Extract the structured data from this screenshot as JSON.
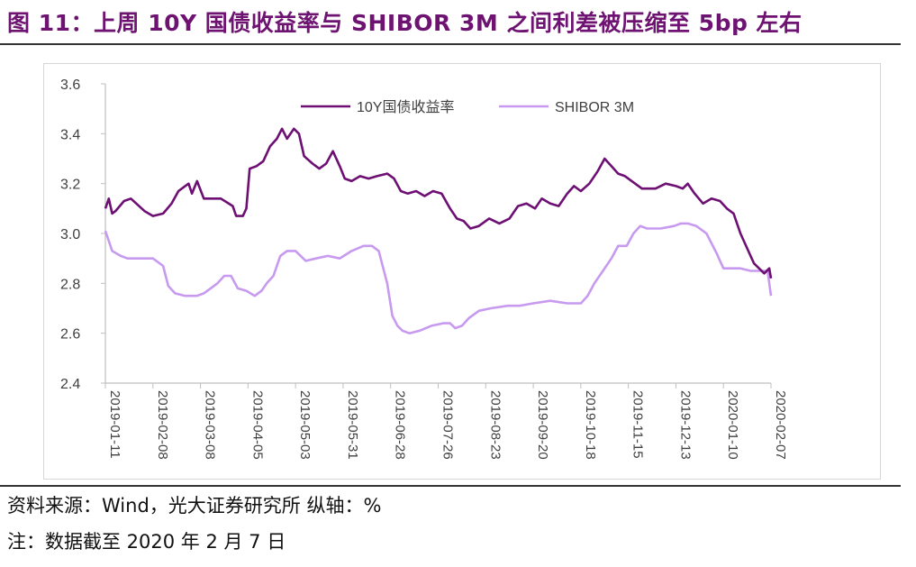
{
  "title": "图 11：上周 10Y 国债收益率与 SHIBOR 3M 之间利差被压缩至 5bp 左右",
  "source": "资料来源：Wind，光大证券研究所 纵轴：%",
  "footnote": "注：数据截至 2020 年 2 月 7 日",
  "colors": {
    "title": "#6e1371",
    "series_10y": "#6d0f73",
    "series_shibor": "#c79af0",
    "axis": "#bfbfbf",
    "text": "#404040"
  },
  "chart_data": {
    "type": "line",
    "title": "",
    "xlabel": "",
    "ylabel": "",
    "ylim": [
      2.4,
      3.6
    ],
    "yticks": [
      "3.6",
      "3.4",
      "3.2",
      "3.0",
      "2.8",
      "2.6",
      "2.4"
    ],
    "xlim": [
      "2019-01-11",
      "2020-02-07"
    ],
    "xticks": [
      "2019-01-11",
      "2019-02-08",
      "2019-03-08",
      "2019-04-05",
      "2019-05-03",
      "2019-05-31",
      "2019-06-28",
      "2019-07-26",
      "2019-08-23",
      "2019-09-20",
      "2019-10-18",
      "2019-11-15",
      "2019-12-13",
      "2020-01-10",
      "2020-02-07"
    ],
    "grid": false,
    "legend": "top-center",
    "series": [
      {
        "name": "10Y国债收益率",
        "x": [
          "2019-01-11",
          "2019-01-13",
          "2019-01-15",
          "2019-01-17",
          "2019-01-22",
          "2019-01-26",
          "2019-02-03",
          "2019-02-08",
          "2019-02-14",
          "2019-02-19",
          "2019-02-23",
          "2019-02-27",
          "2019-03-01",
          "2019-03-03",
          "2019-03-06",
          "2019-03-10",
          "2019-03-16",
          "2019-03-20",
          "2019-03-27",
          "2019-03-29",
          "2019-04-02",
          "2019-04-04",
          "2019-04-06",
          "2019-04-10",
          "2019-04-14",
          "2019-04-18",
          "2019-04-22",
          "2019-04-25",
          "2019-04-28",
          "2019-05-02",
          "2019-05-05",
          "2019-05-08",
          "2019-05-13",
          "2019-05-17",
          "2019-05-21",
          "2019-05-25",
          "2019-05-29",
          "2019-06-01",
          "2019-06-05",
          "2019-06-10",
          "2019-06-15",
          "2019-06-20",
          "2019-06-26",
          "2019-06-30",
          "2019-07-04",
          "2019-07-08",
          "2019-07-13",
          "2019-07-18",
          "2019-07-23",
          "2019-07-28",
          "2019-08-02",
          "2019-08-06",
          "2019-08-10",
          "2019-08-14",
          "2019-08-19",
          "2019-08-25",
          "2019-08-31",
          "2019-09-06",
          "2019-09-11",
          "2019-09-16",
          "2019-09-21",
          "2019-09-25",
          "2019-09-30",
          "2019-10-05",
          "2019-10-10",
          "2019-10-14",
          "2019-10-18",
          "2019-10-23",
          "2019-10-28",
          "2019-11-01",
          "2019-11-05",
          "2019-11-09",
          "2019-11-13",
          "2019-11-17",
          "2019-11-23",
          "2019-12-01",
          "2019-12-07",
          "2019-12-13",
          "2019-12-17",
          "2019-12-20",
          "2019-12-24",
          "2019-12-29",
          "2020-01-03",
          "2020-01-08",
          "2020-01-12",
          "2020-01-16",
          "2020-01-20",
          "2020-01-24",
          "2020-01-28",
          "2020-02-03",
          "2020-02-06",
          "2020-02-07"
        ],
        "values": [
          3.1,
          3.14,
          3.08,
          3.09,
          3.13,
          3.14,
          3.09,
          3.07,
          3.08,
          3.12,
          3.17,
          3.19,
          3.2,
          3.16,
          3.21,
          3.14,
          3.14,
          3.14,
          3.11,
          3.07,
          3.07,
          3.1,
          3.26,
          3.27,
          3.29,
          3.35,
          3.38,
          3.42,
          3.38,
          3.42,
          3.4,
          3.31,
          3.28,
          3.26,
          3.28,
          3.33,
          3.27,
          3.22,
          3.21,
          3.23,
          3.22,
          3.23,
          3.24,
          3.22,
          3.17,
          3.16,
          3.17,
          3.15,
          3.17,
          3.16,
          3.1,
          3.06,
          3.05,
          3.02,
          3.03,
          3.06,
          3.04,
          3.06,
          3.11,
          3.12,
          3.1,
          3.14,
          3.12,
          3.11,
          3.16,
          3.19,
          3.17,
          3.2,
          3.25,
          3.3,
          3.27,
          3.24,
          3.23,
          3.21,
          3.18,
          3.18,
          3.2,
          3.19,
          3.18,
          3.2,
          3.16,
          3.12,
          3.14,
          3.13,
          3.1,
          3.08,
          3.0,
          2.94,
          2.88,
          2.84,
          2.86,
          2.82
        ]
      },
      {
        "name": "SHIBOR 3M",
        "x": [
          "2019-01-11",
          "2019-01-13",
          "2019-01-15",
          "2019-01-20",
          "2019-01-24",
          "2019-01-31",
          "2019-02-08",
          "2019-02-14",
          "2019-02-17",
          "2019-02-21",
          "2019-02-27",
          "2019-03-06",
          "2019-03-10",
          "2019-03-14",
          "2019-03-18",
          "2019-03-22",
          "2019-03-26",
          "2019-03-30",
          "2019-04-04",
          "2019-04-09",
          "2019-04-13",
          "2019-04-16",
          "2019-04-20",
          "2019-04-24",
          "2019-04-28",
          "2019-05-03",
          "2019-05-09",
          "2019-05-15",
          "2019-05-22",
          "2019-05-29",
          "2019-06-05",
          "2019-06-12",
          "2019-06-17",
          "2019-06-21",
          "2019-06-26",
          "2019-06-29",
          "2019-07-02",
          "2019-07-05",
          "2019-07-09",
          "2019-07-15",
          "2019-07-22",
          "2019-07-29",
          "2019-08-02",
          "2019-08-05",
          "2019-08-09",
          "2019-08-13",
          "2019-08-19",
          "2019-08-26",
          "2019-09-05",
          "2019-09-12",
          "2019-09-20",
          "2019-09-30",
          "2019-10-10",
          "2019-10-18",
          "2019-10-22",
          "2019-10-26",
          "2019-10-31",
          "2019-11-05",
          "2019-11-09",
          "2019-11-14",
          "2019-11-18",
          "2019-11-22",
          "2019-11-26",
          "2019-12-04",
          "2019-12-12",
          "2019-12-16",
          "2019-12-20",
          "2019-12-25",
          "2019-12-31",
          "2020-01-06",
          "2020-01-10",
          "2020-01-14",
          "2020-01-20",
          "2020-01-26",
          "2020-02-02",
          "2020-02-05",
          "2020-02-07"
        ],
        "values": [
          3.01,
          2.97,
          2.93,
          2.91,
          2.9,
          2.9,
          2.9,
          2.87,
          2.79,
          2.76,
          2.75,
          2.75,
          2.76,
          2.78,
          2.8,
          2.83,
          2.83,
          2.78,
          2.77,
          2.75,
          2.77,
          2.8,
          2.83,
          2.91,
          2.93,
          2.93,
          2.89,
          2.9,
          2.91,
          2.9,
          2.93,
          2.95,
          2.95,
          2.93,
          2.8,
          2.67,
          2.63,
          2.61,
          2.6,
          2.61,
          2.63,
          2.64,
          2.64,
          2.62,
          2.63,
          2.66,
          2.69,
          2.7,
          2.71,
          2.71,
          2.72,
          2.73,
          2.72,
          2.72,
          2.75,
          2.8,
          2.85,
          2.9,
          2.95,
          2.95,
          3.0,
          3.03,
          3.02,
          3.02,
          3.03,
          3.04,
          3.04,
          3.03,
          3.0,
          2.92,
          2.86,
          2.86,
          2.86,
          2.85,
          2.85,
          2.85,
          2.75
        ]
      }
    ]
  }
}
